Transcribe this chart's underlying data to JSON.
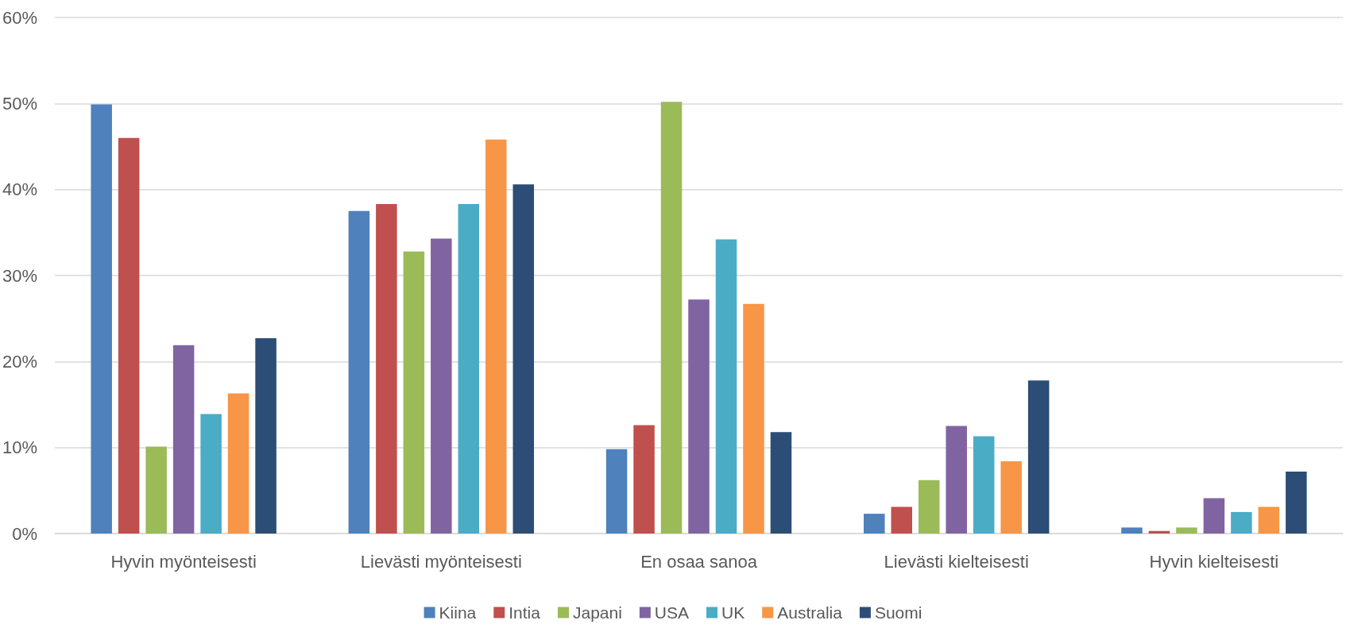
{
  "chart_data": {
    "type": "bar",
    "categories": [
      "Hyvin myönteisesti",
      "Lievästi myönteisesti",
      "En osaa sanoa",
      "Lievästi kielteisesti",
      "Hyvin kielteisesti"
    ],
    "series": [
      {
        "name": "Kiina",
        "color": "#4f81bd",
        "values": [
          49.9,
          37.5,
          9.8,
          2.3,
          0.7
        ]
      },
      {
        "name": "Intia",
        "color": "#c0504d",
        "values": [
          46.0,
          38.3,
          12.6,
          3.1,
          0.3
        ]
      },
      {
        "name": "Japani",
        "color": "#9bbb59",
        "values": [
          10.1,
          32.8,
          50.2,
          6.2,
          0.7
        ]
      },
      {
        "name": "USA",
        "color": "#8064a2",
        "values": [
          21.9,
          34.3,
          27.2,
          12.5,
          4.1
        ]
      },
      {
        "name": "UK",
        "color": "#4bacc6",
        "values": [
          13.9,
          38.3,
          34.2,
          11.3,
          2.5
        ]
      },
      {
        "name": "Australia",
        "color": "#f79646",
        "values": [
          16.3,
          45.8,
          26.7,
          8.4,
          3.1
        ]
      },
      {
        "name": "Suomi",
        "color": "#2c4d75",
        "values": [
          22.7,
          40.6,
          11.8,
          17.8,
          7.2
        ]
      }
    ],
    "ylim": [
      0,
      60
    ],
    "yticks": [
      {
        "value": 0,
        "label": "0%"
      },
      {
        "value": 10,
        "label": "10%"
      },
      {
        "value": 20,
        "label": "20%"
      },
      {
        "value": 30,
        "label": "30%"
      },
      {
        "value": 40,
        "label": "40%"
      },
      {
        "value": 50,
        "label": "50%"
      },
      {
        "value": 60,
        "label": "60%"
      }
    ],
    "grid": "y",
    "legend": "bottom"
  }
}
